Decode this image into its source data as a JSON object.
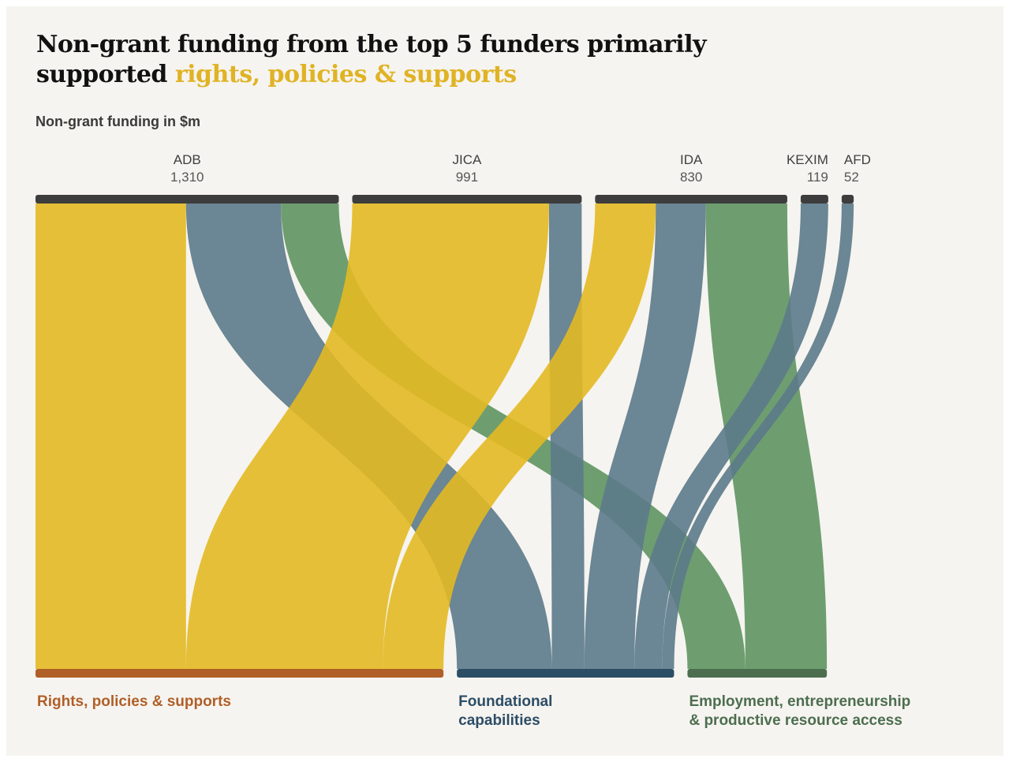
{
  "title": {
    "line1": "Non-grant funding from the top 5 funders primarily",
    "line2_prefix": "supported ",
    "line2_highlight": "rights, policies & supports"
  },
  "subtitle": "Non-grant funding in $m",
  "colors": {
    "background": "#f6f4f0",
    "rights": "#e3b922",
    "foundational": "#5c7a8a",
    "employment": "#5f9562",
    "rights_bar": "#b05f28",
    "foundational_bar": "#2c4d66",
    "employment_bar": "#4c6e4f",
    "source_bar": "#3d3d3d",
    "title_highlight": "#e0b324"
  },
  "chart_data": {
    "type": "sankey",
    "title": "Non-grant funding from the top 5 funders primarily supported rights, policies & supports",
    "unit_label": "Non-grant funding in $m",
    "sources": [
      {
        "name": "ADB",
        "value_label": "1,310",
        "value": 1310
      },
      {
        "name": "JICA",
        "value_label": "991",
        "value": 991
      },
      {
        "name": "IDA",
        "value_label": "830",
        "value": 830
      },
      {
        "name": "KEXIM",
        "value_label": "119",
        "value": 119
      },
      {
        "name": "AFD",
        "value_label": "52",
        "value": 52
      }
    ],
    "targets": [
      {
        "key": "rights",
        "label": "Rights, policies & supports"
      },
      {
        "key": "foundational",
        "label": "Foundational capabilities"
      },
      {
        "key": "employment",
        "label": "Employment, entrepreneurship & productive resource access"
      }
    ],
    "flows": [
      {
        "source": "ADB",
        "target": "rights",
        "value": 650
      },
      {
        "source": "ADB",
        "target": "foundational",
        "value": 410
      },
      {
        "source": "ADB",
        "target": "employment",
        "value": 250
      },
      {
        "source": "JICA",
        "target": "rights",
        "value": 850
      },
      {
        "source": "JICA",
        "target": "foundational",
        "value": 141
      },
      {
        "source": "IDA",
        "target": "rights",
        "value": 262
      },
      {
        "source": "IDA",
        "target": "foundational",
        "value": 216
      },
      {
        "source": "IDA",
        "target": "employment",
        "value": 352
      },
      {
        "source": "KEXIM",
        "target": "foundational",
        "value": 119
      },
      {
        "source": "AFD",
        "target": "foundational",
        "value": 52
      }
    ]
  }
}
